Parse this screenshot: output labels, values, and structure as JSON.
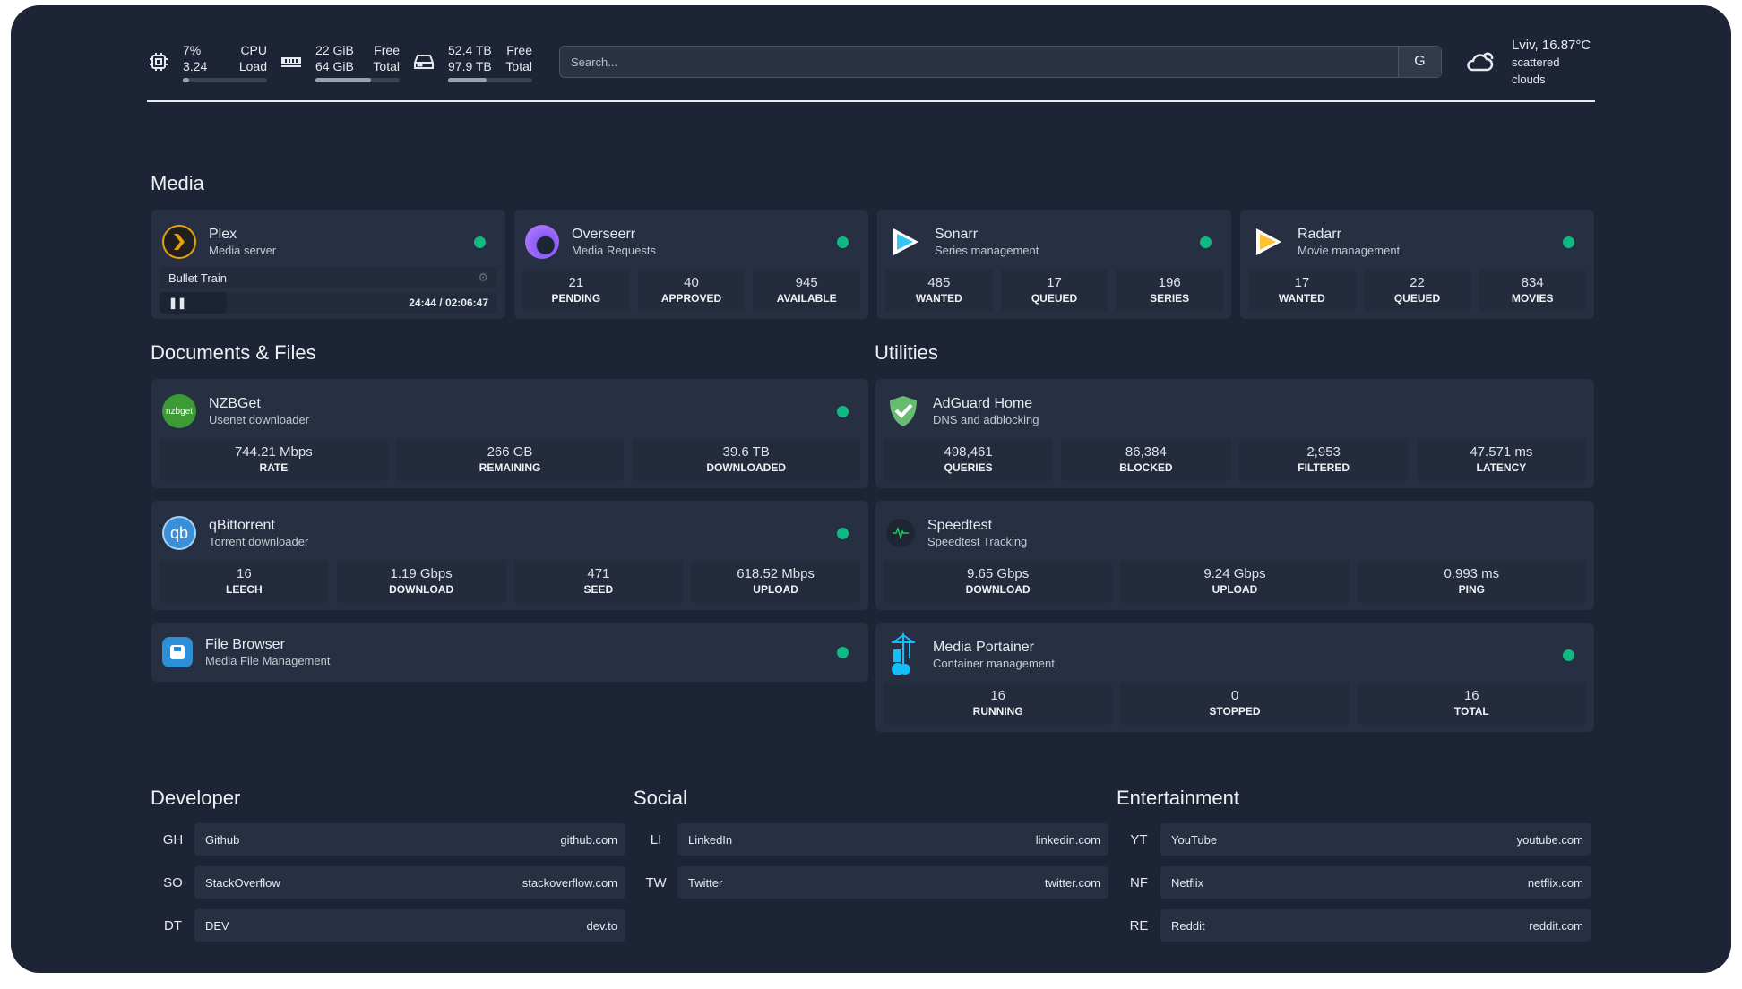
{
  "resources": {
    "cpu": {
      "icon": "cpu-icon",
      "value1": "7%",
      "value2": "3.24",
      "label1": "CPU",
      "label2": "Load",
      "percent": 7
    },
    "memory": {
      "icon": "memory-icon",
      "value1": "22 GiB",
      "value2": "64 GiB",
      "label1": "Free",
      "label2": "Total",
      "percent": 66
    },
    "disk": {
      "icon": "disk-icon",
      "value1": "52.4 TB",
      "value2": "97.9 TB",
      "label1": "Free",
      "label2": "Total",
      "percent": 46
    }
  },
  "search": {
    "placeholder": "Search...",
    "provider_label": "G"
  },
  "weather": {
    "icon": "cloud-sun-icon",
    "location_temp": "Lviv, 16.87°C",
    "condition": "scattered clouds"
  },
  "sections": {
    "media": "Media",
    "documents": "Documents & Files",
    "utilities": "Utilities",
    "developer": "Developer",
    "social": "Social",
    "entertainment": "Entertainment"
  },
  "colors": {
    "status_ok": "#10b981",
    "background": "#1d2435",
    "card": "#273043"
  },
  "media": [
    {
      "name": "Plex",
      "desc": "Media server",
      "now_playing": {
        "title": "Bullet Train",
        "time": "24:44 / 02:06:47",
        "state": "paused"
      }
    },
    {
      "name": "Overseerr",
      "desc": "Media Requests",
      "stats": [
        {
          "v": "21",
          "l": "PENDING"
        },
        {
          "v": "40",
          "l": "APPROVED"
        },
        {
          "v": "945",
          "l": "AVAILABLE"
        }
      ]
    },
    {
      "name": "Sonarr",
      "desc": "Series management",
      "stats": [
        {
          "v": "485",
          "l": "WANTED"
        },
        {
          "v": "17",
          "l": "QUEUED"
        },
        {
          "v": "196",
          "l": "SERIES"
        }
      ]
    },
    {
      "name": "Radarr",
      "desc": "Movie management",
      "stats": [
        {
          "v": "17",
          "l": "WANTED"
        },
        {
          "v": "22",
          "l": "QUEUED"
        },
        {
          "v": "834",
          "l": "MOVIES"
        }
      ]
    }
  ],
  "documents": [
    {
      "name": "NZBGet",
      "desc": "Usenet downloader",
      "logo_text": "nzbget",
      "stats": [
        {
          "v": "744.21 Mbps",
          "l": "RATE"
        },
        {
          "v": "266 GB",
          "l": "REMAINING"
        },
        {
          "v": "39.6 TB",
          "l": "DOWNLOADED"
        }
      ]
    },
    {
      "name": "qBittorrent",
      "desc": "Torrent downloader",
      "logo_text": "qb",
      "stats": [
        {
          "v": "16",
          "l": "LEECH"
        },
        {
          "v": "1.19 Gbps",
          "l": "DOWNLOAD"
        },
        {
          "v": "471",
          "l": "SEED"
        },
        {
          "v": "618.52 Mbps",
          "l": "UPLOAD"
        }
      ]
    },
    {
      "name": "File Browser",
      "desc": "Media File Management"
    }
  ],
  "utilities": [
    {
      "name": "AdGuard Home",
      "desc": "DNS and adblocking",
      "stats": [
        {
          "v": "498,461",
          "l": "QUERIES"
        },
        {
          "v": "86,384",
          "l": "BLOCKED"
        },
        {
          "v": "2,953",
          "l": "FILTERED"
        },
        {
          "v": "47.571 ms",
          "l": "LATENCY"
        }
      ]
    },
    {
      "name": "Speedtest",
      "desc": "Speedtest Tracking",
      "stats": [
        {
          "v": "9.65 Gbps",
          "l": "DOWNLOAD"
        },
        {
          "v": "9.24 Gbps",
          "l": "UPLOAD"
        },
        {
          "v": "0.993 ms",
          "l": "PING"
        }
      ]
    },
    {
      "name": "Media Portainer",
      "desc": "Container management",
      "stats": [
        {
          "v": "16",
          "l": "RUNNING"
        },
        {
          "v": "0",
          "l": "STOPPED"
        },
        {
          "v": "16",
          "l": "TOTAL"
        }
      ]
    }
  ],
  "bookmarks": {
    "developer": [
      {
        "ab": "GH",
        "name": "Github",
        "url": "github.com"
      },
      {
        "ab": "SO",
        "name": "StackOverflow",
        "url": "stackoverflow.com"
      },
      {
        "ab": "DT",
        "name": "DEV",
        "url": "dev.to"
      }
    ],
    "social": [
      {
        "ab": "LI",
        "name": "LinkedIn",
        "url": "linkedin.com"
      },
      {
        "ab": "TW",
        "name": "Twitter",
        "url": "twitter.com"
      }
    ],
    "entertainment": [
      {
        "ab": "YT",
        "name": "YouTube",
        "url": "youtube.com"
      },
      {
        "ab": "NF",
        "name": "Netflix",
        "url": "netflix.com"
      },
      {
        "ab": "RE",
        "name": "Reddit",
        "url": "reddit.com"
      }
    ]
  }
}
